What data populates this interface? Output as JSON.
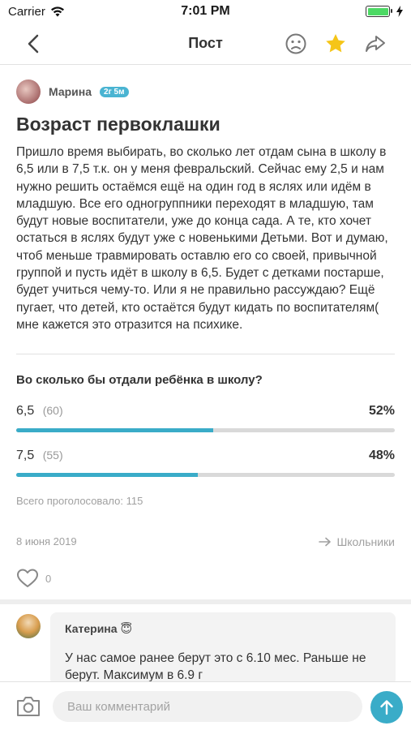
{
  "status_bar": {
    "carrier": "Carrier",
    "time": "7:01 PM"
  },
  "nav": {
    "title": "Пост"
  },
  "post": {
    "author": "Марина",
    "age_badge": "2г 5м",
    "title": "Возраст первоклашки",
    "body": "Пришло время выбирать, во сколько лет отдам сына в школу  в 6,5 или в 7,5 т.к. он у меня февральский. Сейчас ему 2,5 и нам нужно решить остаёмся ещё на один год в яслях или идём в младшую. Все его одногруппники переходят в младшую, там будут новые воспитатели, уже до конца сада. А те, кто хочет остаться в яслях будут уже с новенькими Детьми. Вот и думаю, чтоб меньше травмировать оставлю его со своей, привычной группой и пусть идёт в школу в 6,5. Будет с детками постарше, будет учиться чему-то. Или я не правильно рассуждаю? Ещё пугает, что детей, кто остаётся будут кидать по воспитателям( мне кажется это отразится на психике.",
    "date": "8 июня 2019",
    "category": "Школьники",
    "likes": "0"
  },
  "poll": {
    "question": "Во сколько бы отдали ребёнка в школу?",
    "options": [
      {
        "label": "6,5",
        "count": "(60)",
        "percent_label": "52%",
        "fraction": 0.52
      },
      {
        "label": "7,5",
        "count": "(55)",
        "percent_label": "48%",
        "fraction": 0.48
      }
    ],
    "total": "Всего проголосовало: 115"
  },
  "comments": [
    {
      "author": "Катерина",
      "emoji": "😇",
      "text": "У нас самое ранее берут это с 6.10 мес. Раньше не берут. Максимум в 6.9 г"
    }
  ],
  "composer": {
    "placeholder": "Ваш комментарий"
  },
  "colors": {
    "accent": "#3aacc8",
    "star": "#f5c518",
    "track": "#d9d9d9",
    "muted": "#a0a0a0"
  }
}
